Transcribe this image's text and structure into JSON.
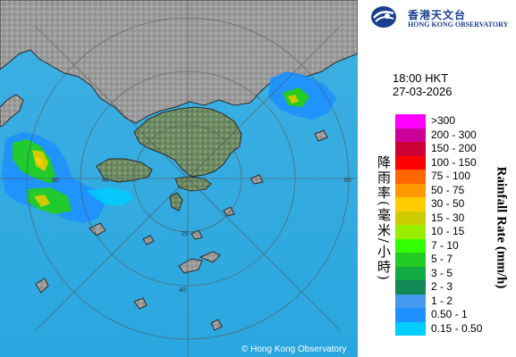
{
  "header": {
    "logo_cn": "香港天文台",
    "logo_en": "HONG KONG OBSERVATORY"
  },
  "timestamp": {
    "time": "18:00 HKT",
    "date": "27-03-2026"
  },
  "legend": {
    "title_cn": "降雨率(毫米/小時)",
    "title_en": "Rainfall Rate (mm/h)",
    "items": [
      {
        "label": ">300",
        "color": "#ff00ff"
      },
      {
        "label": "200 - 300",
        "color": "#cc0099"
      },
      {
        "label": "150 - 200",
        "color": "#cc0033"
      },
      {
        "label": "100 - 150",
        "color": "#ff0000"
      },
      {
        "label": "75 - 100",
        "color": "#ff6600"
      },
      {
        "label": "50 - 75",
        "color": "#ff9900"
      },
      {
        "label": "30 - 50",
        "color": "#ffcc00"
      },
      {
        "label": "15 - 30",
        "color": "#cccc00"
      },
      {
        "label": "10 - 15",
        "color": "#99ee00"
      },
      {
        "label": "7 - 10",
        "color": "#33ff00"
      },
      {
        "label": "5 - 7",
        "color": "#22cc22"
      },
      {
        "label": "3 - 5",
        "color": "#11aa44"
      },
      {
        "label": "2 - 3",
        "color": "#118855"
      },
      {
        "label": "1 - 2",
        "color": "#4499ee"
      },
      {
        "label": "0.50 - 1",
        "color": "#1e90ff"
      },
      {
        "label": "0.15 - 0.50",
        "color": "#00ccff"
      }
    ]
  },
  "map": {
    "ring_labels": [
      "60",
      "40",
      "20",
      "40",
      "60"
    ],
    "copyright": "© Hong Kong Observatory"
  }
}
